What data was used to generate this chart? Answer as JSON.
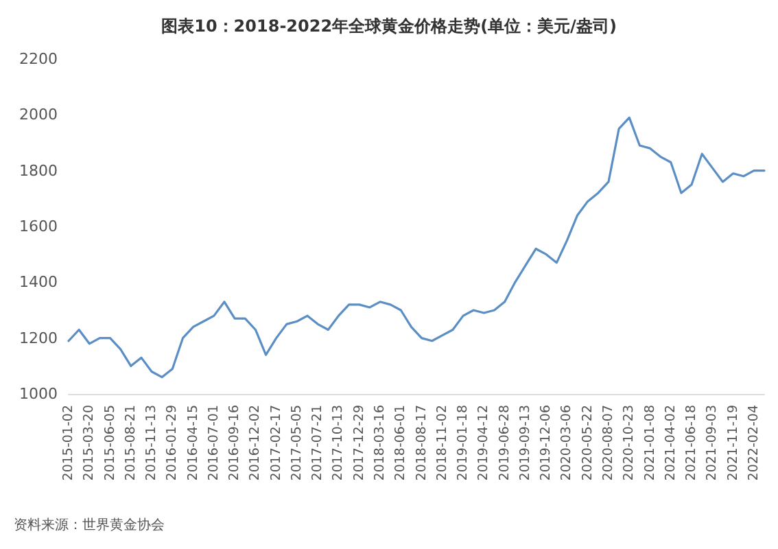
{
  "chart_data": {
    "type": "line",
    "title": "图表10：2018-2022年全球黄金价格走势(单位：美元/盎司)",
    "categories": [
      "2015-01-02",
      null,
      "2015-03-20",
      null,
      "2015-06-05",
      null,
      "2015-08-21",
      null,
      "2015-11-13",
      null,
      "2016-01-29",
      null,
      "2016-04-15",
      null,
      "2016-07-01",
      null,
      "2016-09-16",
      null,
      "2016-12-02",
      null,
      "2017-02-17",
      null,
      "2017-05-05",
      null,
      "2017-07-21",
      null,
      "2017-10-13",
      null,
      "2017-12-29",
      null,
      "2018-03-16",
      null,
      "2018-06-01",
      null,
      "2018-08-17",
      null,
      "2018-11-02",
      null,
      "2019-01-18",
      null,
      "2019-04-12",
      null,
      "2019-06-28",
      null,
      "2019-09-13",
      null,
      "2019-12-06",
      null,
      "2020-03-06",
      null,
      "2020-05-22",
      null,
      "2020-08-07",
      null,
      "2020-10-23",
      null,
      "2021-01-08",
      null,
      "2021-04-02",
      null,
      "2021-06-18",
      null,
      "2021-09-03",
      null,
      "2021-11-19",
      null,
      "2022-02-04",
      null
    ],
    "series": [
      {
        "color": "#5b8ec4",
        "values": [
          1190,
          1230,
          1180,
          1200,
          1200,
          1160,
          1100,
          1130,
          1080,
          1060,
          1090,
          1200,
          1240,
          1260,
          1280,
          1330,
          1270,
          1270,
          1230,
          1140,
          1200,
          1250,
          1260,
          1280,
          1250,
          1230,
          1280,
          1320,
          1320,
          1310,
          1330,
          1320,
          1300,
          1240,
          1200,
          1190,
          1210,
          1230,
          1280,
          1300,
          1290,
          1300,
          1330,
          1400,
          1460,
          1520,
          1500,
          1470,
          1550,
          1640,
          1690,
          1720,
          1760,
          1950,
          1990,
          1890,
          1880,
          1850,
          1830,
          1720,
          1750,
          1860,
          1810,
          1760,
          1790,
          1780,
          1800,
          1800
        ]
      }
    ],
    "ylim": [
      1000,
      2200
    ],
    "yticks": [
      1000,
      1200,
      1400,
      1600,
      1800,
      2000,
      2200
    ],
    "grid": false,
    "marker": "none",
    "line_style": "solid",
    "annotations": [
      "资料来源：世界黄金协会"
    ]
  }
}
